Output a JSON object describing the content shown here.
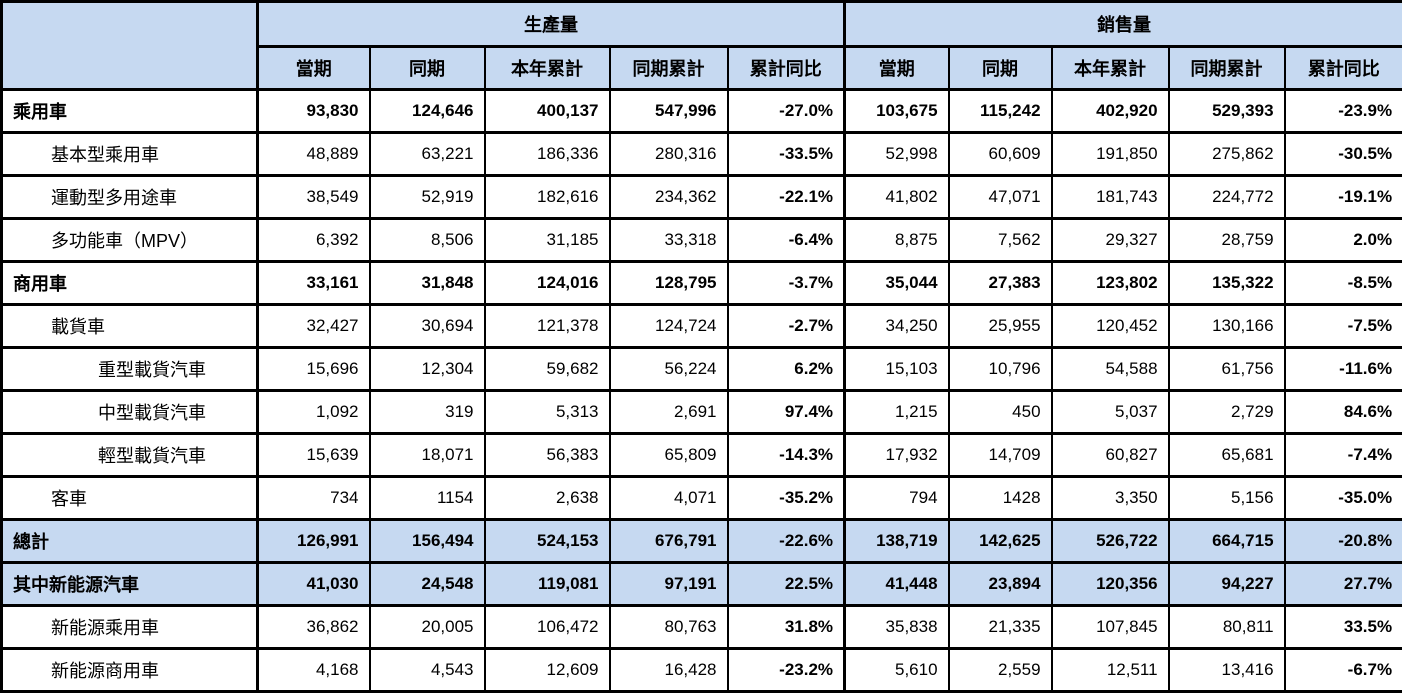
{
  "colors": {
    "header_bg": "#C6D9F1",
    "highlight_row_bg": "#C6D9F1",
    "border": "#000000",
    "text": "#000000"
  },
  "table": {
    "header": {
      "production_group": "生產量",
      "sales_group": "銷售量",
      "subcolumns": [
        "當期",
        "同期",
        "本年累計",
        "同期累計",
        "累計同比"
      ]
    },
    "rows": [
      {
        "label": "乘用車",
        "indent": 1,
        "bold": true,
        "highlight": false,
        "production": [
          "93,830",
          "124,646",
          "400,137",
          "547,996",
          "-27.0%"
        ],
        "sales": [
          "103,675",
          "115,242",
          "402,920",
          "529,393",
          "-23.9%"
        ]
      },
      {
        "label": "基本型乘用車",
        "indent": 2,
        "bold": false,
        "highlight": false,
        "production": [
          "48,889",
          "63,221",
          "186,336",
          "280,316",
          "-33.5%"
        ],
        "sales": [
          "52,998",
          "60,609",
          "191,850",
          "275,862",
          "-30.5%"
        ]
      },
      {
        "label": "運動型多用途車",
        "indent": 2,
        "bold": false,
        "highlight": false,
        "production": [
          "38,549",
          "52,919",
          "182,616",
          "234,362",
          "-22.1%"
        ],
        "sales": [
          "41,802",
          "47,071",
          "181,743",
          "224,772",
          "-19.1%"
        ]
      },
      {
        "label": "多功能車（MPV）",
        "indent": 2,
        "bold": false,
        "highlight": false,
        "production": [
          "6,392",
          "8,506",
          "31,185",
          "33,318",
          "-6.4%"
        ],
        "sales": [
          "8,875",
          "7,562",
          "29,327",
          "28,759",
          "2.0%"
        ]
      },
      {
        "label": "商用車",
        "indent": 1,
        "bold": true,
        "highlight": false,
        "production": [
          "33,161",
          "31,848",
          "124,016",
          "128,795",
          "-3.7%"
        ],
        "sales": [
          "35,044",
          "27,383",
          "123,802",
          "135,322",
          "-8.5%"
        ]
      },
      {
        "label": "載貨車",
        "indent": 2,
        "bold": false,
        "highlight": false,
        "production": [
          "32,427",
          "30,694",
          "121,378",
          "124,724",
          "-2.7%"
        ],
        "sales": [
          "34,250",
          "25,955",
          "120,452",
          "130,166",
          "-7.5%"
        ]
      },
      {
        "label": "重型載貨汽車",
        "indent": 3,
        "bold": false,
        "highlight": false,
        "production": [
          "15,696",
          "12,304",
          "59,682",
          "56,224",
          "6.2%"
        ],
        "sales": [
          "15,103",
          "10,796",
          "54,588",
          "61,756",
          "-11.6%"
        ]
      },
      {
        "label": "中型載貨汽車",
        "indent": 3,
        "bold": false,
        "highlight": false,
        "production": [
          "1,092",
          "319",
          "5,313",
          "2,691",
          "97.4%"
        ],
        "sales": [
          "1,215",
          "450",
          "5,037",
          "2,729",
          "84.6%"
        ]
      },
      {
        "label": "輕型載貨汽車",
        "indent": 3,
        "bold": false,
        "highlight": false,
        "production": [
          "15,639",
          "18,071",
          "56,383",
          "65,809",
          "-14.3%"
        ],
        "sales": [
          "17,932",
          "14,709",
          "60,827",
          "65,681",
          "-7.4%"
        ]
      },
      {
        "label": "客車",
        "indent": 2,
        "bold": false,
        "highlight": false,
        "production": [
          "734",
          "1154",
          "2,638",
          "4,071",
          "-35.2%"
        ],
        "sales": [
          "794",
          "1428",
          "3,350",
          "5,156",
          "-35.0%"
        ]
      },
      {
        "label": "總計",
        "indent": 1,
        "bold": true,
        "highlight": true,
        "production": [
          "126,991",
          "156,494",
          "524,153",
          "676,791",
          "-22.6%"
        ],
        "sales": [
          "138,719",
          "142,625",
          "526,722",
          "664,715",
          "-20.8%"
        ]
      },
      {
        "label": "其中新能源汽車",
        "indent": 1,
        "bold": true,
        "highlight": true,
        "production": [
          "41,030",
          "24,548",
          "119,081",
          "97,191",
          "22.5%"
        ],
        "sales": [
          "41,448",
          "23,894",
          "120,356",
          "94,227",
          "27.7%"
        ]
      },
      {
        "label": "新能源乘用車",
        "indent": 2,
        "bold": false,
        "highlight": false,
        "production": [
          "36,862",
          "20,005",
          "106,472",
          "80,763",
          "31.8%"
        ],
        "sales": [
          "35,838",
          "21,335",
          "107,845",
          "80,811",
          "33.5%"
        ]
      },
      {
        "label": "新能源商用車",
        "indent": 2,
        "bold": false,
        "highlight": false,
        "production": [
          "4,168",
          "4,543",
          "12,609",
          "16,428",
          "-23.2%"
        ],
        "sales": [
          "5,610",
          "2,559",
          "12,511",
          "13,416",
          "-6.7%"
        ]
      }
    ]
  }
}
